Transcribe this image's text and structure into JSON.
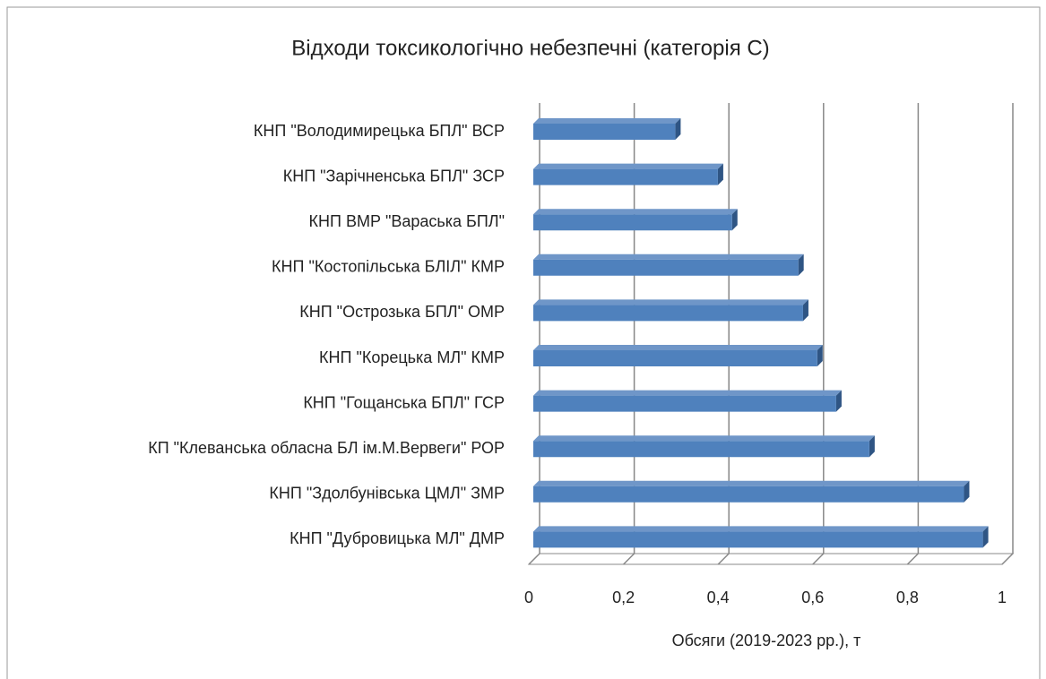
{
  "chart_data": {
    "type": "bar3d_horizontal",
    "title": "Відходи токсикологічно небезпечні (категорія С)",
    "x_label": "Обсяги (2019-2023 рр.), т",
    "categories": [
      "КНП \"Володимирецька БПЛ\" ВСР",
      "КНП \"Зарічненська БПЛ\" ЗСР",
      "КНП ВМР \"Вараська БПЛ\"",
      "КНП \"Костопільська БЛІЛ\" КМР",
      "КНП \"Острозька БПЛ\" ОМР",
      "КНП \"Корецька МЛ\" КМР",
      "КНП \"Гощанська БПЛ\" ГСР",
      "КП \"Клеванська обласна БЛ ім.М.Вервеги\" РОР",
      "КНП \"Здолбунівська ЦМЛ\" ЗМР",
      "КНП \"Дубровицька МЛ\" ДМР"
    ],
    "values": [
      0.3,
      0.39,
      0.42,
      0.56,
      0.57,
      0.6,
      0.64,
      0.71,
      0.91,
      0.95
    ],
    "color": "#4f81bd",
    "xlim": [
      0,
      1
    ],
    "xticks": [
      0,
      {
        "value": 0.2,
        "label": "0,2"
      },
      {
        "value": 0.4,
        "label": "0,4"
      },
      {
        "value": 0.6,
        "label": "0,6"
      },
      {
        "value": 0.8,
        "label": "0,8"
      },
      1
    ],
    "grid": true
  }
}
